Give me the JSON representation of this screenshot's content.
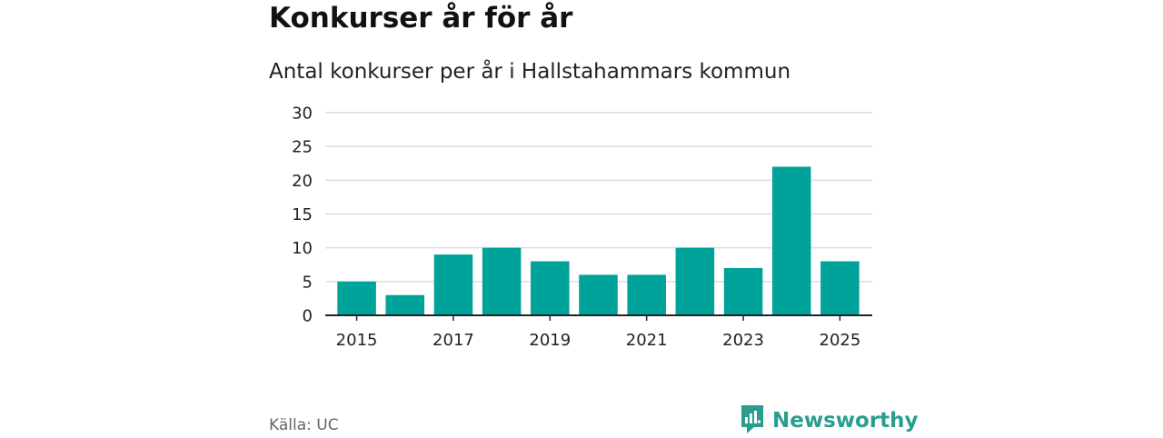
{
  "header": {
    "title": "Konkurser år för år",
    "subtitle": "Antal konkurser per år i Hallstahammars kommun"
  },
  "footer": {
    "source": "Källa: UC",
    "brand": "Newsworthy",
    "brand_icon": "newsworthy-logo-icon"
  },
  "colors": {
    "bar": "#00A39A",
    "brand": "#2A9D8F",
    "grid": "#DDDDDD",
    "axis": "#222222"
  },
  "chart_data": {
    "type": "bar",
    "title": "Konkurser år för år",
    "subtitle": "Antal konkurser per år i Hallstahammars kommun",
    "xlabel": "",
    "ylabel": "",
    "categories": [
      2015,
      2016,
      2017,
      2018,
      2019,
      2020,
      2021,
      2022,
      2023,
      2024,
      2025
    ],
    "values": [
      5,
      3,
      9,
      10,
      8,
      6,
      6,
      10,
      7,
      22,
      8
    ],
    "xticks": [
      "2015",
      "2017",
      "2019",
      "2021",
      "2023",
      "2025"
    ],
    "yticks": [
      "0",
      "5",
      "10",
      "15",
      "20",
      "25",
      "30"
    ],
    "ylim": [
      0,
      30
    ],
    "grid": true
  }
}
